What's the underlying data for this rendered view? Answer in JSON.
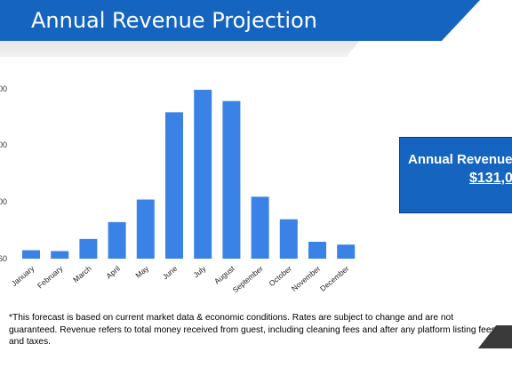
{
  "header": {
    "title": "Annual Revenue Projection"
  },
  "summary": {
    "label": "Annual Revenue",
    "value": "$131,0"
  },
  "footnote": "*This forecast is based on current market data & economic conditions. Rates are subject to change and are not guaranteed. Revenue refers to total money received from guest, including cleaning fees and after any platform listing fees and taxes.",
  "colors": {
    "bar": "#3b82e6",
    "banner": "#1565c0"
  },
  "chart_data": {
    "type": "bar",
    "categories": [
      "January",
      "February",
      "March",
      "April",
      "May",
      "June",
      "July",
      "August",
      "September",
      "October",
      "November",
      "December"
    ],
    "values": [
      3,
      2.7,
      7,
      13,
      21,
      52,
      60,
      56,
      22,
      14,
      6,
      5
    ],
    "y_tick_labels": [
      "00",
      "00",
      "00",
      "60"
    ],
    "grid": false,
    "legend": "none"
  }
}
